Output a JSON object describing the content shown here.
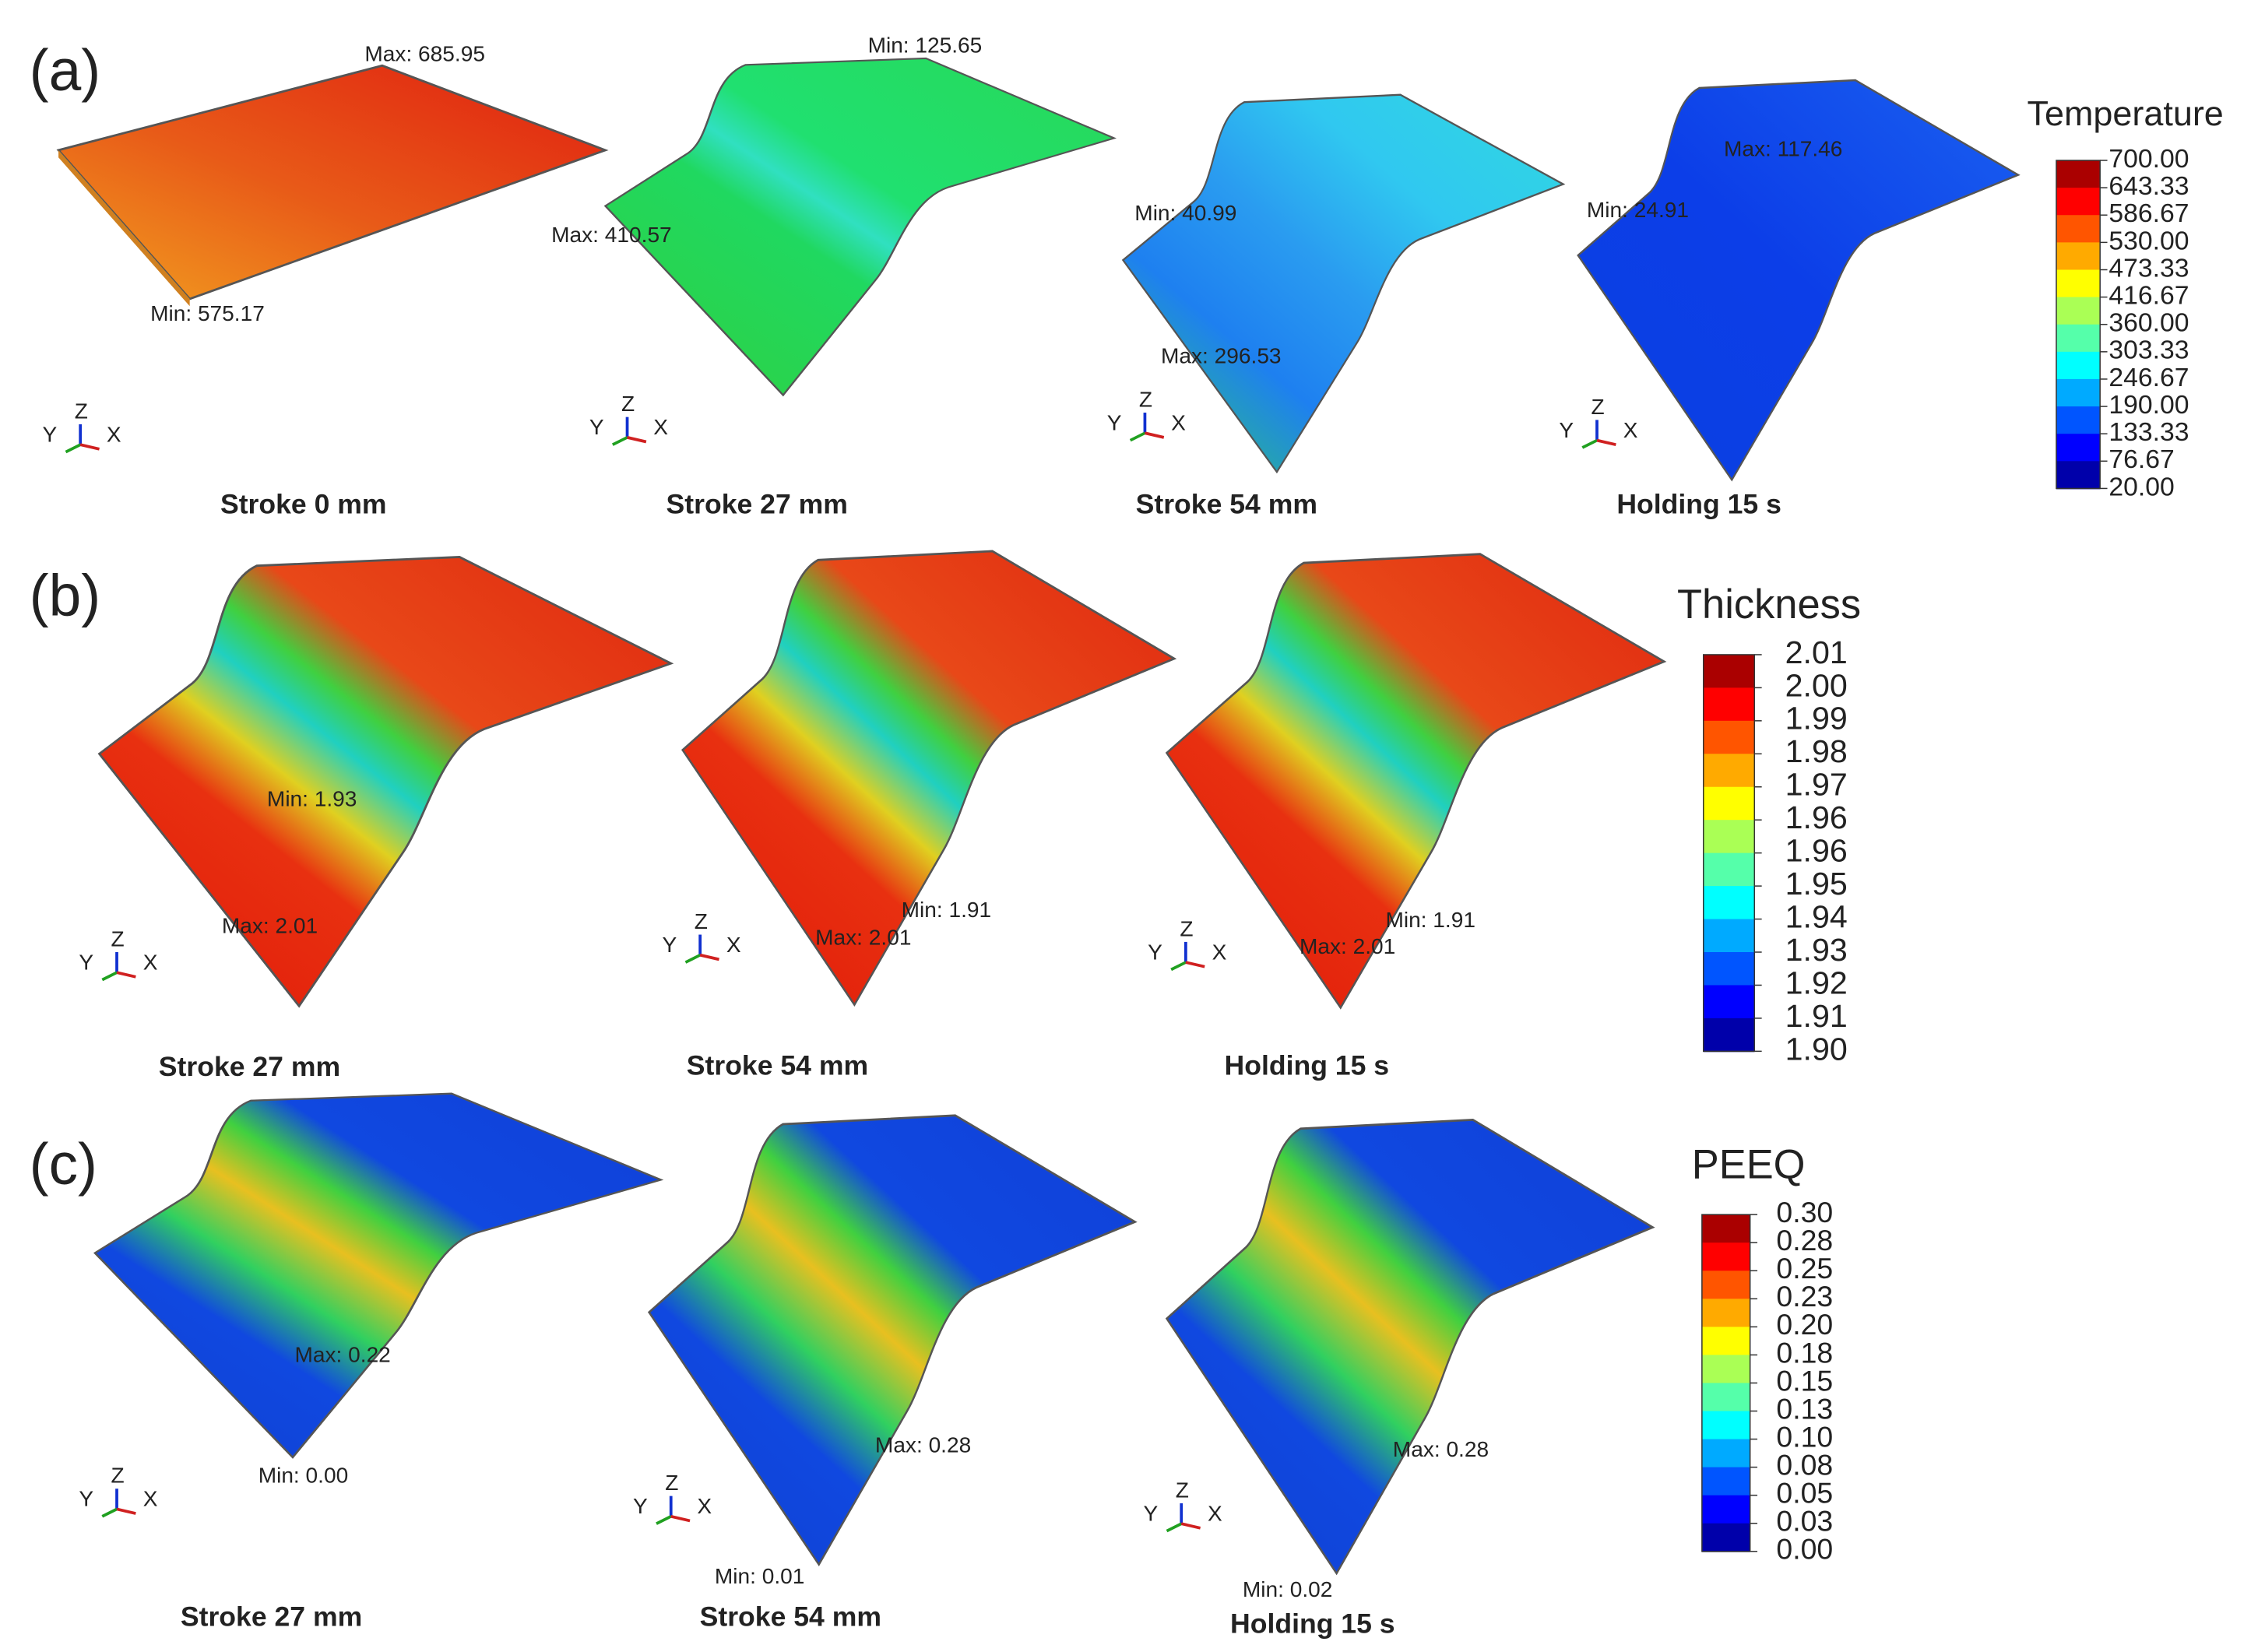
{
  "panels": [
    {
      "label": "(a)",
      "legend": {
        "title": "Temperature",
        "ticks": [
          "700.00",
          "643.33",
          "586.67",
          "530.00",
          "473.33",
          "416.67",
          "360.00",
          "303.33",
          "246.67",
          "190.00",
          "133.33",
          "76.67",
          "20.00"
        ]
      },
      "plots": [
        {
          "caption": "Stroke 0 mm",
          "annotations": [
            "Max: 685.95",
            "Min: 575.17"
          ],
          "axis_labels": [
            "Y",
            "Z",
            "X"
          ]
        },
        {
          "caption": "Stroke 27 mm",
          "annotations": [
            "Min: 125.65",
            "Max: 410.57"
          ],
          "axis_labels": [
            "Y",
            "Z",
            "X"
          ]
        },
        {
          "caption": "Stroke 54 mm",
          "annotations": [
            "Min: 40.99",
            "Max: 296.53"
          ],
          "axis_labels": [
            "Y",
            "Z",
            "X"
          ]
        },
        {
          "caption": "Holding 15 s",
          "annotations": [
            "Min: 24.91",
            "Max: 117.46"
          ],
          "axis_labels": [
            "Y",
            "Z",
            "X"
          ]
        }
      ]
    },
    {
      "label": "(b)",
      "legend": {
        "title": "Thickness",
        "ticks": [
          "2.01",
          "2.00",
          "1.99",
          "1.98",
          "1.97",
          "1.96",
          "1.96",
          "1.95",
          "1.94",
          "1.93",
          "1.92",
          "1.91",
          "1.90"
        ]
      },
      "plots": [
        {
          "caption": "Stroke 27 mm",
          "annotations": [
            "Min: 1.93",
            "Max: 2.01"
          ],
          "axis_labels": [
            "Y",
            "Z",
            "X"
          ]
        },
        {
          "caption": "Stroke 54 mm",
          "annotations": [
            "Min: 1.91",
            "Max: 2.01"
          ],
          "axis_labels": [
            "Y",
            "Z",
            "X"
          ]
        },
        {
          "caption": "Holding 15 s",
          "annotations": [
            "Min: 1.91",
            "Max: 2.01"
          ],
          "axis_labels": [
            "Y",
            "Z",
            "X"
          ]
        }
      ]
    },
    {
      "label": "(c)",
      "legend": {
        "title": "PEEQ",
        "ticks": [
          "0.30",
          "0.28",
          "0.25",
          "0.23",
          "0.20",
          "0.18",
          "0.15",
          "0.13",
          "0.10",
          "0.08",
          "0.05",
          "0.03",
          "0.00"
        ]
      },
      "plots": [
        {
          "caption": "Stroke 27 mm",
          "annotations": [
            "Max: 0.22",
            "Min: 0.00"
          ],
          "axis_labels": [
            "Y",
            "Z",
            "X"
          ]
        },
        {
          "caption": "Stroke 54 mm",
          "annotations": [
            "Max: 0.28",
            "Min: 0.01"
          ],
          "axis_labels": [
            "Y",
            "Z",
            "X"
          ]
        },
        {
          "caption": "Holding 15 s",
          "annotations": [
            "Max: 0.28",
            "Min: 0.02"
          ],
          "axis_labels": [
            "Y",
            "Z",
            "X"
          ]
        }
      ]
    }
  ]
}
